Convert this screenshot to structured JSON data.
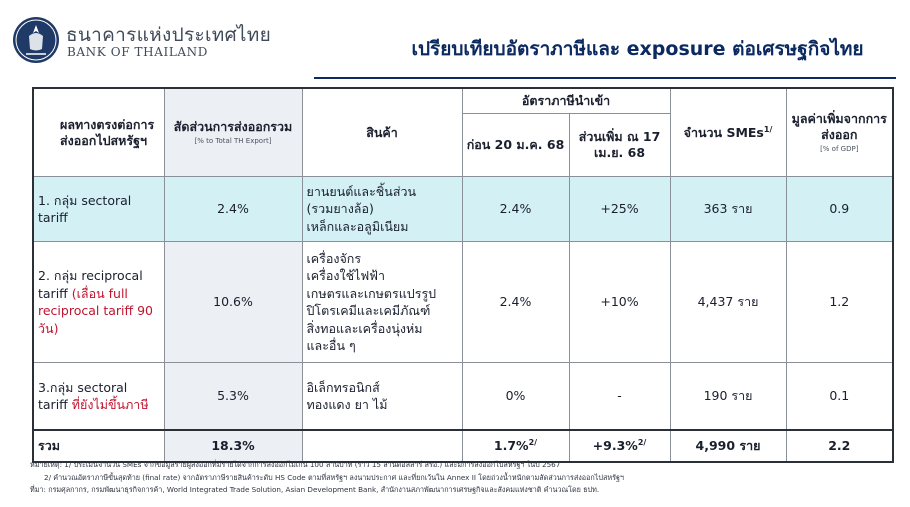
{
  "brand": {
    "name_th": "ธนาคารแห่งประเทศไทย",
    "name_en": "BANK OF THAILAND"
  },
  "title": "เปรียบเทียบอัตราภาษีและ exposure ต่อเศรษฐกิจไทย",
  "colors": {
    "title": "#0c2a61",
    "highlight_row": "#d3f0f5",
    "red_text": "#c0152f",
    "logo": "#1f3a66"
  },
  "table": {
    "headers": {
      "group": "ผลทางตรงต่อการส่งออกไปสหรัฐฯ",
      "share": "สัดส่วนการส่งออกรวม",
      "share_sub": "[% to Total TH Export]",
      "products": "สินค้า",
      "import_tax": "อัตราภาษีนำเข้า",
      "before": "ก่อน 20 ม.ค. 68",
      "increase": "ส่วนเพิ่ม ณ 17 เม.ย. 68",
      "smes": "จำนวน SMEs",
      "smes_sup": "1/",
      "va": "มูลค่าเพิ่มจากการส่งออก",
      "va_sub": "[% of GDP]"
    },
    "rows": [
      {
        "group": "1. กลุ่ม sectoral tariff",
        "group_red": "",
        "share": "2.4%",
        "products": [
          "ยานยนต์และชิ้นส่วน",
          "(รวมยางล้อ)",
          "เหล็กและอลูมิเนียม"
        ],
        "before": "2.4%",
        "increase": "+25%",
        "smes": "363 ราย",
        "va": "0.9"
      },
      {
        "group": "2. กลุ่ม reciprocal tariff",
        "group_red": "(เลื่อน full reciprocal tariff 90 วัน)",
        "share": "10.6%",
        "products": [
          "เครื่องจักร",
          "เครื่องใช้ไฟฟ้า",
          "เกษตรและเกษตรแปรรูป",
          "ปิโตรเคมีและเคมีภัณฑ์",
          "สิ่งทอและเครื่องนุ่งห่ม",
          "และอื่น ๆ"
        ],
        "before": "2.4%",
        "increase": "+10%",
        "smes": "4,437 ราย",
        "va": "1.2"
      },
      {
        "group": "3.กลุ่ม sectoral tariff",
        "group_red": "ที่ยังไม่ขึ้นภาษี",
        "share": "5.3%",
        "products": [
          "อิเล็กทรอนิกส์",
          "ทองแดง ยา ไม้"
        ],
        "before": "0%",
        "increase": "-",
        "smes": "190 ราย",
        "va": "0.1"
      }
    ],
    "total": {
      "label": "รวม",
      "share": "18.3%",
      "before": "1.7%",
      "before_sup": "2/",
      "increase": "+9.3%",
      "increase_sup": "2/",
      "smes": "4,990 ราย",
      "va": "2.2"
    }
  },
  "notes": {
    "note1": "หมายเหตุ: 1/ ประเมินจำนวน SMEs จากข้อมูลรายผู้ส่งออกที่มีรายได้จากการส่งออกไม่เกิน 100 ล้านบาท (ราว 15 ล้านดอลลาร์ สรอ.) และมีการส่งออกไปสหรัฐฯ ในปี 2567",
    "note2": "2/ คำนวณอัตราภาษีขั้นสุดท้าย (final rate) จากอัตราภาษีรายสินค้าระดับ HS Code ตามที่สหรัฐฯ ลงนามประกาศ และที่ยกเว้นใน Annex II โดยถ่วงน้ำหนักตามสัดส่วนการส่งออกไปสหรัฐฯ",
    "source": "ที่มา: กรมศุลกากร, กรมพัฒนาธุรกิจการค้า, World Integrated Trade Solution, Asian Development Bank, สำนักงานสภาพัฒนาการเศรษฐกิจและสังคมแห่งชาติ คำนวณโดย ธปท."
  }
}
